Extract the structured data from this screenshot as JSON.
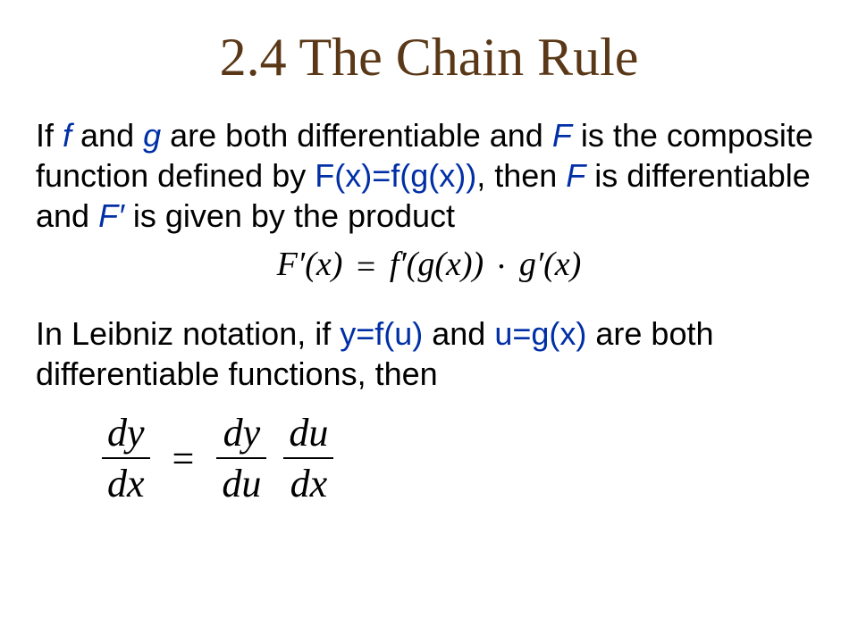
{
  "colors": {
    "title": "#5a3817",
    "accent": "#002fa6",
    "text": "#000000",
    "background": "#ffffff"
  },
  "typography": {
    "title_font": "Comic Sans MS",
    "title_size_pt": 44,
    "body_font": "Arial",
    "body_size_pt": 28,
    "formula_font": "Georgia",
    "formula_size_pt": 28,
    "leibniz_size_pt": 34
  },
  "title": "2.4 The Chain Rule",
  "para1": {
    "t1": "If ",
    "f": "f",
    "t2": " and ",
    "g": "g",
    "t3": " are both differentiable and ",
    "Fcap": "F",
    "t4": " is the composite function defined by ",
    "comp": "F(x)=f(g(x))",
    "t5": ", then ",
    "Fcap2": "F",
    "t6": " is differentiable and ",
    "Fprime": "F′",
    "t7": " is given by the product"
  },
  "formula1": {
    "lhs": "F′(x)",
    "eq": "=",
    "rhs1": "f′(g(x))",
    "dot": "·",
    "rhs2": "g′(x)"
  },
  "para2": {
    "t1": "In Leibniz notation, if ",
    "eq1": "y=f(u)",
    "t2": " and ",
    "eq2": "u=g(x)",
    "t3": " are both differentiable functions, then"
  },
  "leibniz": {
    "n1": "dy",
    "d1": "dx",
    "eq": "=",
    "n2": "dy",
    "d2": "du",
    "n3": "du",
    "d3": "dx"
  }
}
